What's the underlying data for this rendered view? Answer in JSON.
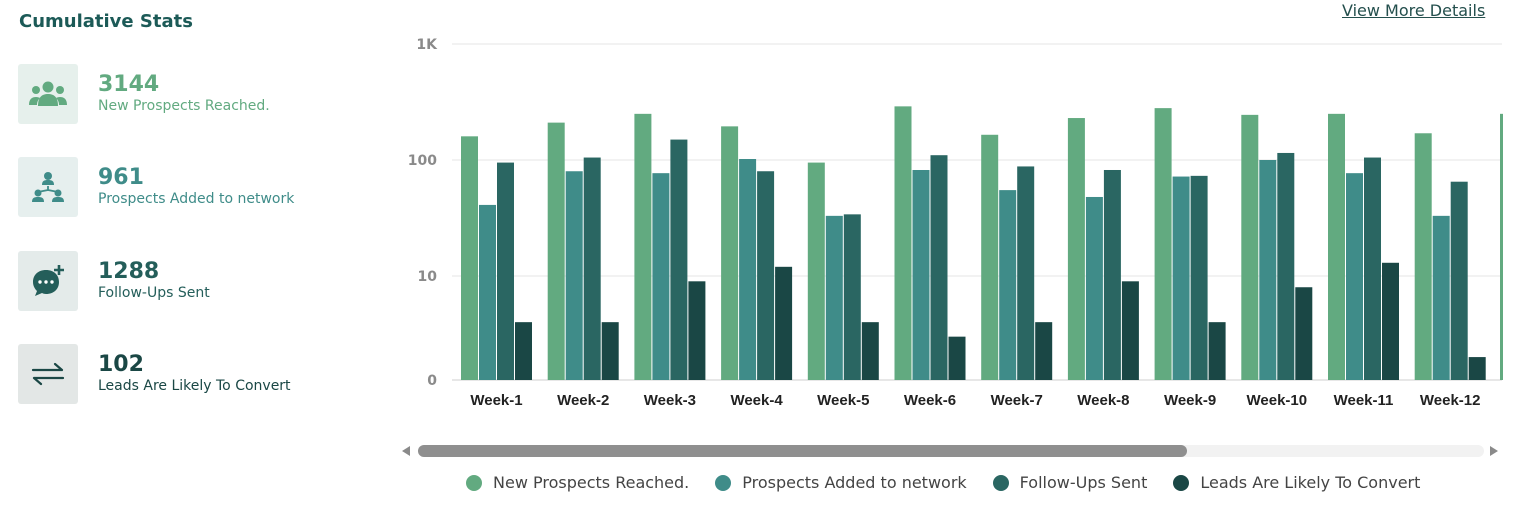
{
  "header": {
    "title": "Cumulative Stats",
    "view_more": "View More Details"
  },
  "stats": [
    {
      "value": "3144",
      "label": "New Prospects Reached.",
      "icon": "users-group-icon"
    },
    {
      "value": "961",
      "label": "Prospects Added to network",
      "icon": "network-icon"
    },
    {
      "value": "1288",
      "label": "Follow-Ups Sent",
      "icon": "chat-plus-icon"
    },
    {
      "value": "102",
      "label": "Leads Are Likely To Convert",
      "icon": "exchange-arrows-icon"
    }
  ],
  "colors": {
    "s1": "#62aa80",
    "s2": "#3f8c89",
    "s3": "#2a6662",
    "s4": "#1a4745"
  },
  "chart_data": {
    "type": "bar",
    "scale": "log",
    "categories": [
      "Week-1",
      "Week-2",
      "Week-3",
      "Week-4",
      "Week-5",
      "Week-6",
      "Week-7",
      "Week-8",
      "Week-9",
      "Week-10",
      "Week-11",
      "Week-12"
    ],
    "series": [
      {
        "name": "New Prospects Reached.",
        "values": [
          160,
          210,
          250,
          195,
          95,
          290,
          165,
          230,
          280,
          245,
          250,
          170
        ]
      },
      {
        "name": "Prospects Added to network",
        "values": [
          41,
          80,
          77,
          102,
          33,
          82,
          55,
          48,
          72,
          100,
          77,
          33
        ]
      },
      {
        "name": "Follow-Ups Sent",
        "values": [
          95,
          105,
          150,
          80,
          34,
          110,
          88,
          82,
          73,
          115,
          105,
          65
        ]
      },
      {
        "name": "Leads Are Likely To Convert",
        "values": [
          4,
          4,
          9,
          12,
          4,
          3,
          4,
          9,
          4,
          8,
          13,
          2
        ]
      }
    ],
    "y_ticks": [
      {
        "value": 1000,
        "label": "1K"
      },
      {
        "value": 100,
        "label": "100"
      },
      {
        "value": 10,
        "label": "10"
      },
      {
        "value": 0,
        "label": "0"
      }
    ],
    "grid": true,
    "legend": "bottom"
  }
}
